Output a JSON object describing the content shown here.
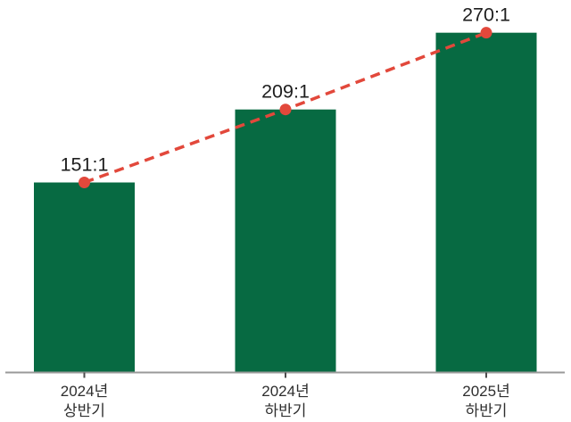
{
  "colors": {
    "background": "#ffffff",
    "bar": "#076a42",
    "trend_line": "#e2483b",
    "marker": "#e2483b",
    "axis": "#9a9a9a",
    "tick": "#4d4d4d",
    "value_label": "#1e1e1e",
    "category_label": "#2e2e2e"
  },
  "chart_data": {
    "type": "bar",
    "categories": [
      [
        "2024년",
        "상반기"
      ],
      [
        "2024년",
        "하반기"
      ],
      [
        "2025년",
        "하반기"
      ]
    ],
    "values": [
      151,
      209,
      270
    ],
    "value_labels": [
      "151:1",
      "209:1",
      "270:1"
    ],
    "overlay": {
      "type": "line",
      "style": "dashed",
      "markers": "circle",
      "values": [
        151,
        209,
        270
      ]
    },
    "title": "",
    "xlabel": "",
    "ylabel": "",
    "ylim": [
      0,
      296
    ],
    "grid": false,
    "legend": null,
    "value_unit": ":1"
  }
}
